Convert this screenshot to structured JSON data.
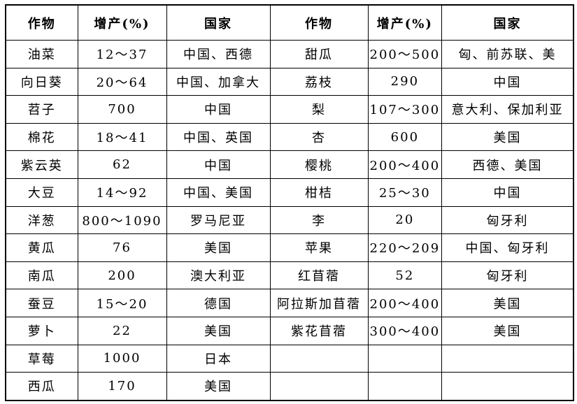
{
  "page": {
    "background_color": "#ffffff",
    "text_color": "#000000",
    "border_color": "#000000"
  },
  "table": {
    "columns": [
      {
        "label": "作物"
      },
      {
        "label": "增产(%)"
      },
      {
        "label": "国家"
      },
      {
        "label": "作物"
      },
      {
        "label": "增产(%)"
      },
      {
        "label": "国家"
      }
    ],
    "rows": [
      [
        "油菜",
        "12～37",
        "中国、西德",
        "甜瓜",
        "200～500",
        "匈、前苏联、美"
      ],
      [
        "向日葵",
        "20～64",
        "中国、加拿大",
        "荔枝",
        "290",
        "中国"
      ],
      [
        "苕子",
        "700",
        "中国",
        "梨",
        "107～300",
        "意大利、保加利亚"
      ],
      [
        "棉花",
        "18～41",
        "中国、英国",
        "杏",
        "600",
        "美国"
      ],
      [
        "紫云英",
        "62",
        "中国",
        "樱桃",
        "200～400",
        "西德、美国"
      ],
      [
        "大豆",
        "14～92",
        "中国、美国",
        "柑桔",
        "25～30",
        "中国"
      ],
      [
        "洋葱",
        "800～1090",
        "罗马尼亚",
        "李",
        "20",
        "匈牙利"
      ],
      [
        "黄瓜",
        "76",
        "美国",
        "苹果",
        "220～209",
        "中国、匈牙利"
      ],
      [
        "南瓜",
        "200",
        "澳大利亚",
        "红苜蓿",
        "52",
        "匈牙利"
      ],
      [
        "蚕豆",
        "15～20",
        "德国",
        "阿拉斯加苜蓿",
        "200～400",
        "美国"
      ],
      [
        "萝卜",
        "22",
        "美国",
        "紫花苜蓿",
        "300～400",
        "美国"
      ],
      [
        "草莓",
        "1000",
        "日本",
        "",
        "",
        ""
      ],
      [
        "西瓜",
        "170",
        "美国",
        "",
        "",
        ""
      ]
    ]
  }
}
